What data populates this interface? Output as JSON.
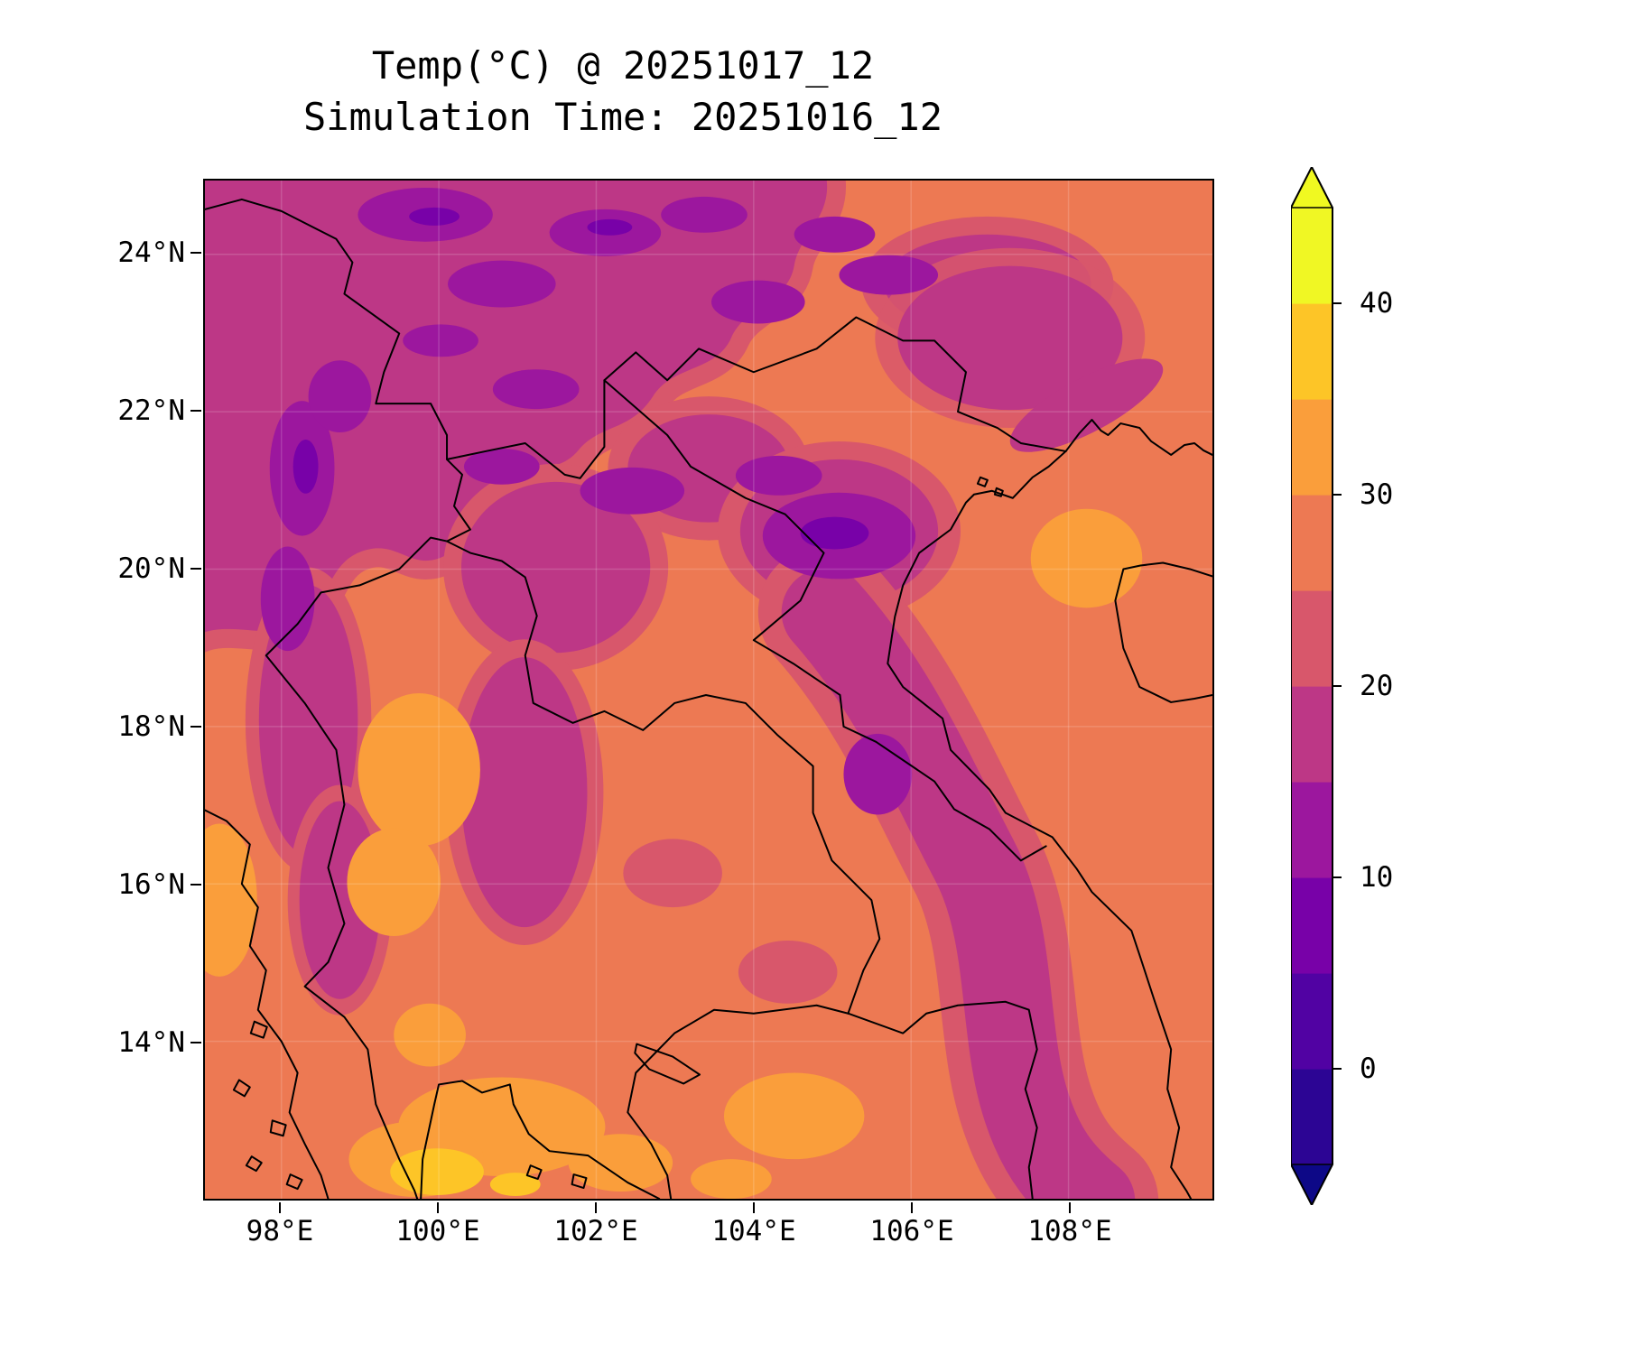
{
  "title": {
    "line1": "Temp(°C) @ 20251017_12",
    "line2": "Simulation Time: 20251016_12"
  },
  "axes": {
    "x_tick_labels": [
      "98°E",
      "100°E",
      "102°E",
      "104°E",
      "106°E",
      "108°E"
    ],
    "y_tick_labels": [
      "24°N",
      "22°N",
      "20°N",
      "18°N",
      "16°N",
      "14°N"
    ]
  },
  "colorbar": {
    "tick_labels": [
      "40",
      "30",
      "20",
      "10",
      "0"
    ],
    "tick_values": [
      40,
      30,
      20,
      10,
      0
    ],
    "band_edges": [
      -5,
      0,
      5,
      10,
      15,
      20,
      25,
      30,
      35,
      40,
      45
    ],
    "band_colors_bottom_to_top": [
      "#2c0594",
      "#5102a3",
      "#7801a8",
      "#9c179e",
      "#bd3786",
      "#d8576b",
      "#ed7953",
      "#fa9e3b",
      "#fdc527",
      "#f0f724"
    ],
    "under_color": "#0d0887",
    "over_color": "#f0f921"
  },
  "map_palette": {
    "base_warm_orange": "#ed7953",
    "hot_orange": "#fa9e3b",
    "hot_gold": "#fdc527",
    "cool_pink": "#d8576b",
    "cool_magenta": "#bd3786",
    "cold_purple": "#9c179e",
    "cold_deep_purple": "#7801a8",
    "border_line": "#000000"
  },
  "chart_data": {
    "type": "heatmap",
    "title": "Temp(°C) @ 20251017_12",
    "subtitle": "Simulation Time: 20251016_12",
    "variable": "Temp",
    "units": "°C",
    "colormap": "plasma",
    "style": "filled contour map over Indochina with country borders and coastlines",
    "extend": "both",
    "levels_c": [
      -5,
      0,
      5,
      10,
      15,
      20,
      25,
      30,
      35,
      40,
      45
    ],
    "colorbar_ticks_c": [
      0,
      10,
      20,
      30,
      40
    ],
    "x_axis": {
      "ticks": [
        "98°E",
        "100°E",
        "102°E",
        "104°E",
        "106°E",
        "108°E"
      ],
      "range_deg_east": [
        97.0,
        109.8
      ]
    },
    "y_axis": {
      "ticks": [
        "14°N",
        "16°N",
        "18°N",
        "20°N",
        "22°N",
        "24°N"
      ],
      "range_deg_north": [
        12.0,
        25.0
      ]
    },
    "grid_sample_lon_e": [
      98,
      100,
      102,
      104,
      106,
      108,
      109.5
    ],
    "grid_sample_lat_n": [
      24,
      22,
      20,
      18,
      16,
      14,
      13
    ],
    "temperature_c_estimated": [
      [
        23,
        17,
        16,
        17,
        22,
        27,
        27
      ],
      [
        22,
        18,
        17,
        18,
        24,
        27,
        27
      ],
      [
        23,
        19,
        18,
        17,
        26,
        28,
        31
      ],
      [
        24,
        22,
        24,
        26,
        27,
        28,
        28
      ],
      [
        27,
        26,
        28,
        28,
        27,
        23,
        27
      ],
      [
        28,
        31,
        28,
        28,
        27,
        22,
        26
      ],
      [
        28,
        33,
        30,
        32,
        28,
        24,
        27
      ]
    ],
    "features": [
      "cool 14-22 °C magenta/purple region over northern highlands (N Thailand, N Laos, NW Vietnam, S China)",
      "warm 25-30 °C orange over lowlands, Gulf of Tonkin and Gulf of Thailand",
      "hot 30-35 °C patches over central Thailand, Cambodia lowlands and the northern Gulf of Tonkin",
      "35-40 °C gold spot near the upper Gulf of Thailand coast",
      "cool 15-25 °C band with purple spots along the Annamite range / south-central Vietnam coast"
    ]
  }
}
